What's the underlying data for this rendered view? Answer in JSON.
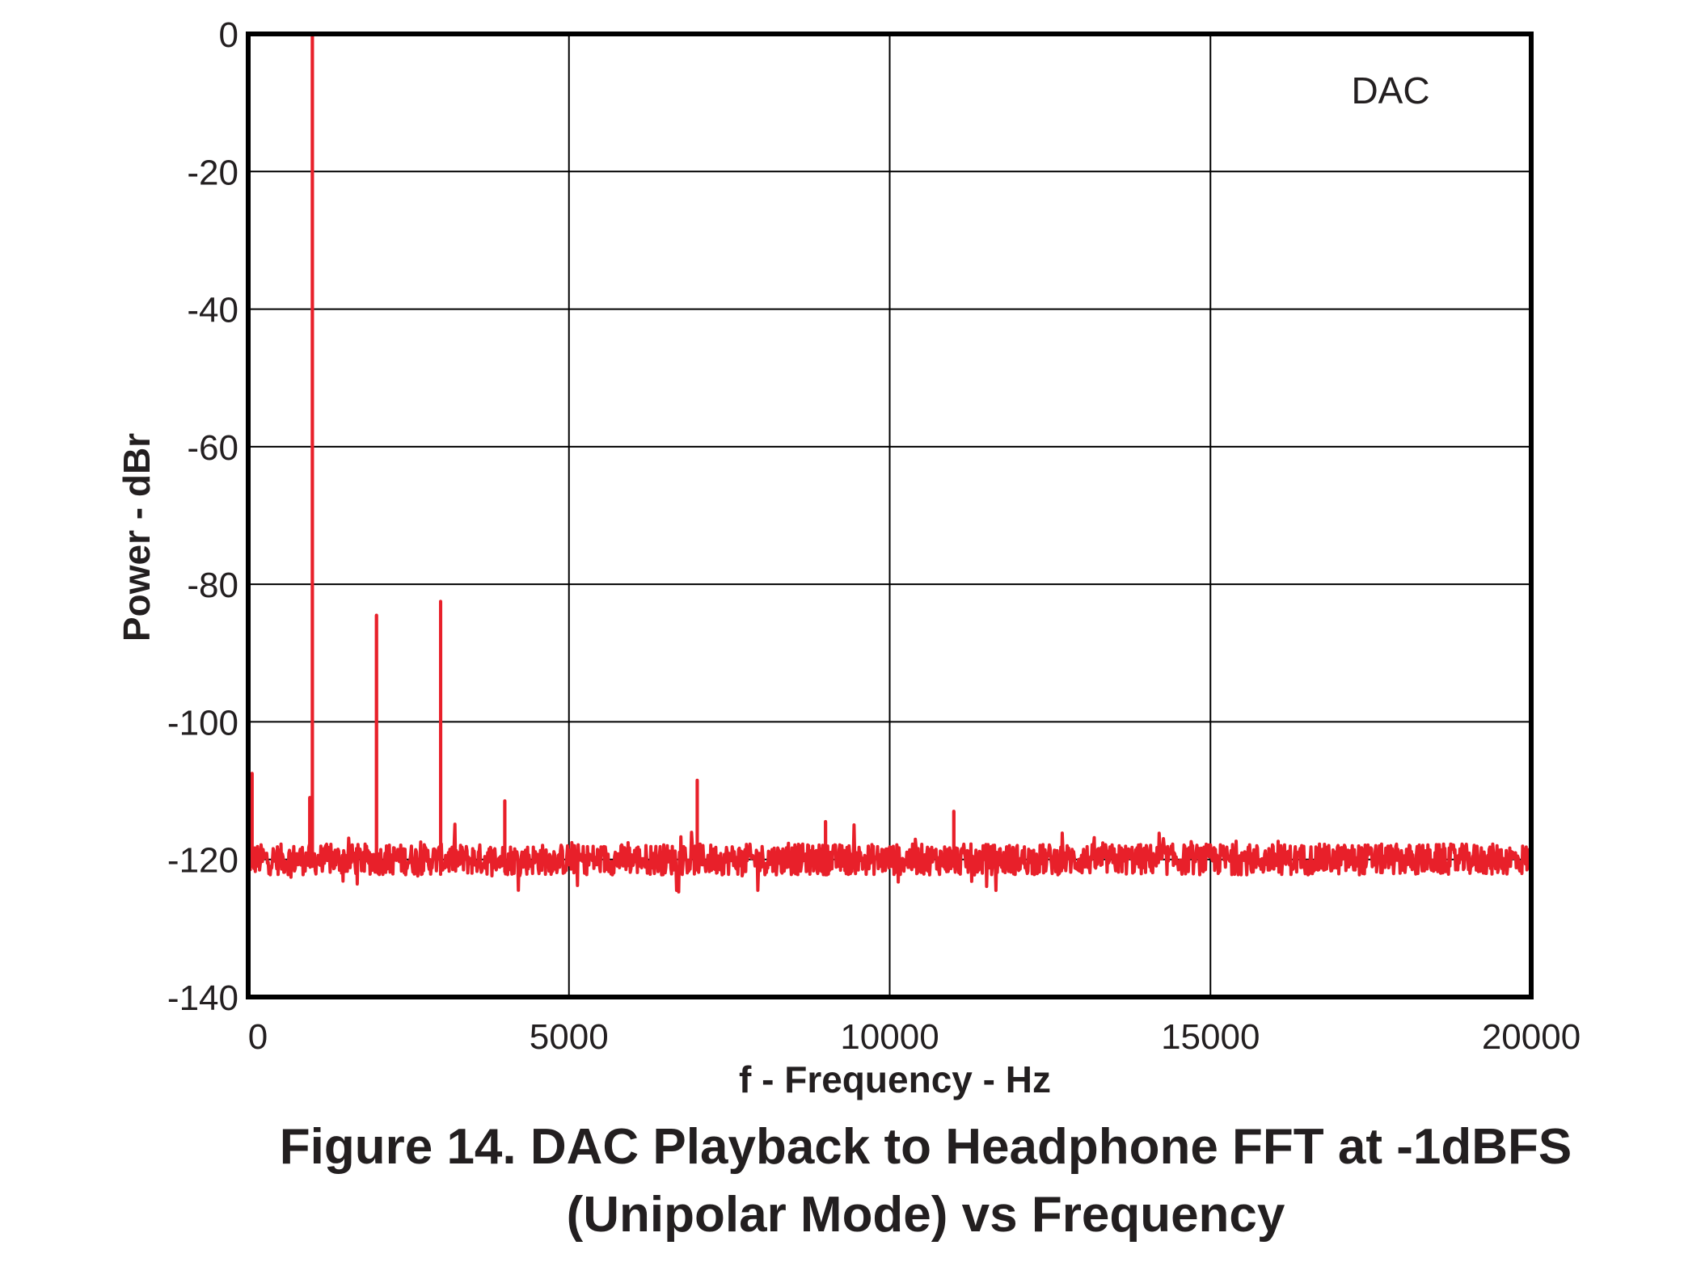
{
  "caption": {
    "line1": "Figure 14. DAC Playback to Headphone FFT at -1dBFS",
    "line2": "(Unipolar Mode) vs Frequency"
  },
  "colors": {
    "trace": "#e8202a",
    "frame": "#000000",
    "grid": "#000000",
    "text": "#231f20"
  },
  "chart_data": {
    "type": "line",
    "xlabel": "f - Frequency - Hz",
    "ylabel": "Power - dBr",
    "xlim": [
      0,
      20000
    ],
    "ylim": [
      -140,
      0
    ],
    "xticks": [
      0,
      5000,
      10000,
      15000,
      20000
    ],
    "yticks": [
      0,
      -20,
      -40,
      -60,
      -80,
      -100,
      -120,
      -140
    ],
    "grid": true,
    "annotations": [
      {
        "text": "DAC",
        "placement": "top-right"
      }
    ],
    "noise_floor_db": -120,
    "series": [
      {
        "peaks": [
          {
            "x": 20,
            "y": -108
          },
          {
            "x": 60,
            "y": -107.5
          },
          {
            "x": 960,
            "y": -111
          },
          {
            "x": 1000,
            "y": 0
          },
          {
            "x": 2000,
            "y": -84.5
          },
          {
            "x": 3000,
            "y": -82.5
          },
          {
            "x": 4000,
            "y": -111.5
          },
          {
            "x": 7000,
            "y": -108.5
          },
          {
            "x": 9000,
            "y": -114.5
          },
          {
            "x": 11000,
            "y": -113
          }
        ]
      }
    ]
  }
}
